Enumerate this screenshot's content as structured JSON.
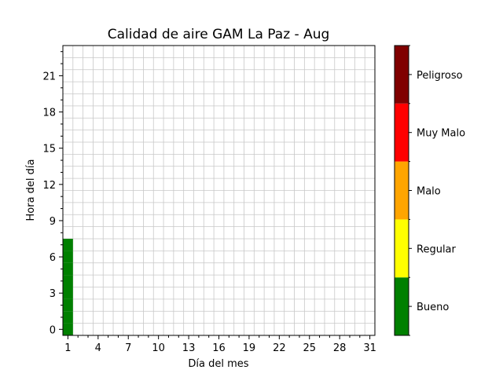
{
  "chart_data": {
    "type": "heatmap",
    "title": "Calidad de aire GAM La Paz - Aug",
    "xlabel": "Día del mes",
    "ylabel": "Hora del día",
    "x_range": [
      0.5,
      31.5
    ],
    "y_range": [
      -0.5,
      23.5
    ],
    "x_ticks": [
      1,
      4,
      7,
      10,
      13,
      16,
      19,
      22,
      25,
      28,
      31
    ],
    "y_ticks": [
      0,
      3,
      6,
      9,
      12,
      15,
      18,
      21
    ],
    "grid": true,
    "categories": [
      "Bueno",
      "Regular",
      "Malo",
      "Muy Malo",
      "Peligroso"
    ],
    "category_colors": [
      "#008000",
      "#ffff00",
      "#ffa500",
      "#ff0000",
      "#800000"
    ],
    "cells": [
      {
        "day": 1,
        "hour": 0,
        "category": "Bueno"
      },
      {
        "day": 1,
        "hour": 1,
        "category": "Bueno"
      },
      {
        "day": 1,
        "hour": 2,
        "category": "Bueno"
      },
      {
        "day": 1,
        "hour": 3,
        "category": "Bueno"
      },
      {
        "day": 1,
        "hour": 4,
        "category": "Bueno"
      },
      {
        "day": 1,
        "hour": 5,
        "category": "Bueno"
      },
      {
        "day": 1,
        "hour": 6,
        "category": "Bueno"
      },
      {
        "day": 1,
        "hour": 7,
        "category": "Bueno"
      }
    ]
  }
}
